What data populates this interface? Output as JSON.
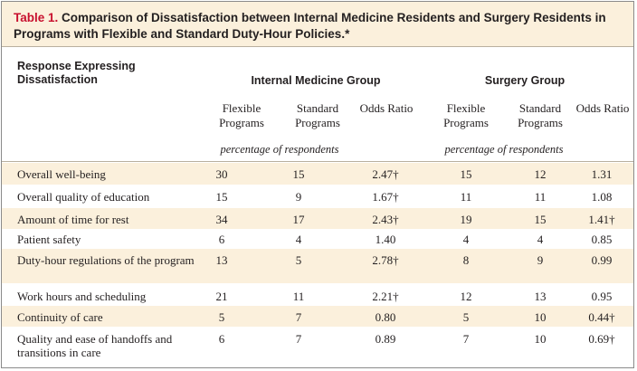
{
  "title": {
    "label": "Table 1.",
    "text": "Comparison of Dissatisfaction between Internal Medicine Residents and Surgery Residents in Programs with Flexible and Standard Duty-Hour Policies.*"
  },
  "header": {
    "row_label": "Response Expressing Dissatisfaction",
    "groups": [
      "Internal Medicine Group",
      "Surgery Group"
    ],
    "columns": [
      "Flexible Programs",
      "Standard Programs",
      "Odds Ratio",
      "Flexible Programs",
      "Standard Programs",
      "Odds Ratio"
    ],
    "unit": "percentage of respondents"
  },
  "rows": [
    {
      "label": "Overall well-being",
      "values": [
        "30",
        "15",
        "2.47†",
        "15",
        "12",
        "1.31"
      ]
    },
    {
      "label": "Overall quality of education",
      "values": [
        "15",
        "9",
        "1.67†",
        "11",
        "11",
        "1.08"
      ]
    },
    {
      "label": "Amount of time for rest",
      "values": [
        "34",
        "17",
        "2.43†",
        "19",
        "15",
        "1.41†"
      ]
    },
    {
      "label": "Patient safety",
      "values": [
        "6",
        "4",
        "1.40",
        "4",
        "4",
        "0.85"
      ]
    },
    {
      "label": "Duty-hour regulations of the program",
      "values": [
        "13",
        "5",
        "2.78†",
        "8",
        "9",
        "0.99"
      ]
    },
    {
      "label": "Work hours and scheduling",
      "values": [
        "21",
        "11",
        "2.21†",
        "12",
        "13",
        "0.95"
      ]
    },
    {
      "label": "Continuity of care",
      "values": [
        "5",
        "7",
        "0.80",
        "5",
        "10",
        "0.44†"
      ]
    },
    {
      "label": "Quality and ease of handoffs and transitions in care",
      "values": [
        "6",
        "7",
        "0.89",
        "7",
        "10",
        "0.69†"
      ]
    }
  ]
}
